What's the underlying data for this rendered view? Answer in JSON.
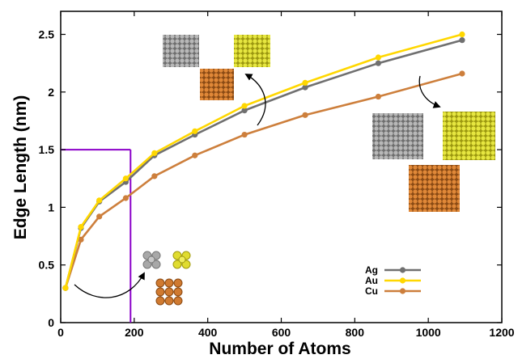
{
  "chart_data": {
    "type": "line",
    "title": "",
    "xlabel": "Number of Atoms",
    "ylabel": "Edge Length (nm)",
    "xlim": [
      0,
      1200
    ],
    "ylim": [
      0,
      2.7
    ],
    "xticks": [
      0,
      200,
      400,
      600,
      800,
      1000,
      1200
    ],
    "yticks": [
      0,
      0.5,
      1,
      1.5,
      2,
      2.5
    ],
    "xtick_labels": [
      "0",
      "200",
      "400",
      "600",
      "800",
      "1000",
      "1200"
    ],
    "ytick_labels": [
      "0",
      "0.5",
      "1",
      "1.5",
      "2",
      "2.5"
    ],
    "grid": false,
    "legend_position": "bottom-right",
    "series": [
      {
        "name": "Ag",
        "color": "#707070",
        "x": [
          13,
          55,
          105,
          177,
          255,
          365,
          500,
          665,
          864,
          1092
        ],
        "y": [
          0.3,
          0.82,
          1.05,
          1.22,
          1.45,
          1.63,
          1.84,
          2.04,
          2.25,
          2.45
        ]
      },
      {
        "name": "Au",
        "color": "#ffd700",
        "x": [
          13,
          55,
          105,
          177,
          255,
          365,
          500,
          665,
          864,
          1092
        ],
        "y": [
          0.3,
          0.83,
          1.06,
          1.25,
          1.47,
          1.66,
          1.88,
          2.08,
          2.3,
          2.5
        ]
      },
      {
        "name": "Cu",
        "color": "#cd7f3c",
        "x": [
          13,
          55,
          105,
          177,
          255,
          365,
          500,
          665,
          864,
          1092
        ],
        "y": [
          0.3,
          0.72,
          0.92,
          1.08,
          1.27,
          1.45,
          1.63,
          1.8,
          1.96,
          2.16
        ]
      }
    ],
    "reference_line": {
      "color": "#8b00c9",
      "x": 190,
      "y": 1.5
    },
    "cluster_colors": {
      "Ag": "#8a8a8a",
      "Au": "#d4d020",
      "Cu": "#c86f28"
    }
  }
}
